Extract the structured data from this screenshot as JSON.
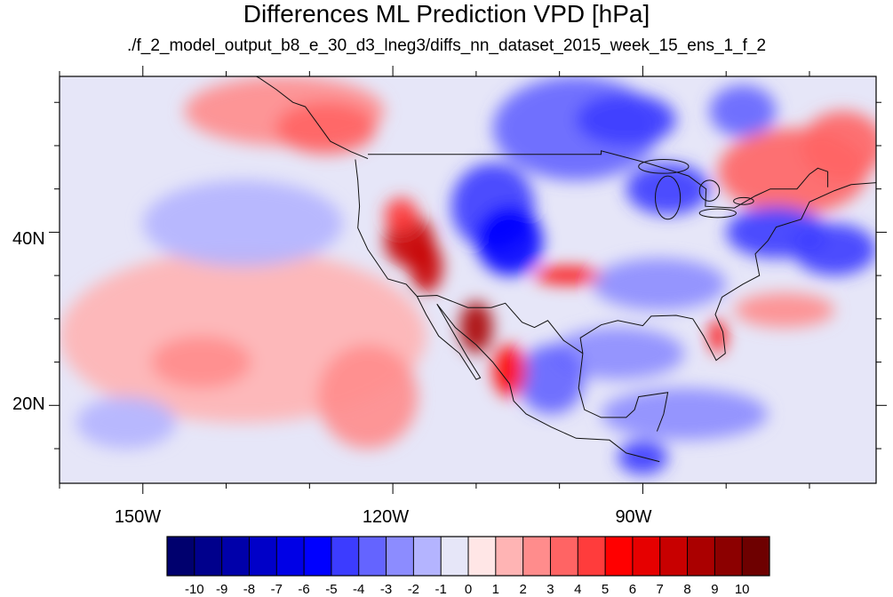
{
  "title": "Differences ML Prediction VPD [hPa]",
  "subtitle": "./f_2_model_output_b8_e_30_d3_lneg3/diffs_nn_dataset_2015_week_15_ens_1_f_2",
  "map": {
    "lon_range": [
      -160,
      -62
    ],
    "lat_range": [
      11,
      58
    ],
    "lat_labels": [
      {
        "lat": 40,
        "text": "40N"
      },
      {
        "lat": 20,
        "text": "20N"
      }
    ],
    "lon_labels": [
      {
        "lon": -150,
        "text": "150W"
      },
      {
        "lon": -120,
        "text": "120W"
      },
      {
        "lon": -90,
        "text": "90W"
      }
    ],
    "background_color": "#e6e6f8",
    "fields": [
      {
        "name": "northwest-pacific-positive",
        "value": 2,
        "lon": -133,
        "lat": 54,
        "rlon": 12,
        "rlat": 4
      },
      {
        "name": "alaska-coast-positive",
        "value": 3,
        "lon": -128,
        "lat": 52,
        "rlon": 6,
        "rlat": 3
      },
      {
        "name": "pacific-subtropical-positive",
        "value": 1,
        "lon": -138,
        "lat": 28,
        "rlon": 22,
        "rlat": 10
      },
      {
        "name": "pacific-west-positive",
        "value": 2,
        "lon": -143,
        "lat": 25,
        "rlon": 6,
        "rlat": 3
      },
      {
        "name": "mexico-pacific-positive",
        "value": 2,
        "lon": -123,
        "lat": 21,
        "rlon": 6,
        "rlat": 6
      },
      {
        "name": "pacific-midlat-negative",
        "value": -2,
        "lon": -138,
        "lat": 41,
        "rlon": 12,
        "rlat": 5
      },
      {
        "name": "pacific-low-negative",
        "value": -2,
        "lon": -152,
        "lat": 18,
        "rlon": 6,
        "rlat": 3
      },
      {
        "name": "central-canada-negative",
        "value": -4,
        "lon": -98,
        "lat": 52,
        "rlon": 10,
        "rlat": 6
      },
      {
        "name": "northern-canada-negative",
        "value": -5,
        "lon": -92,
        "lat": 53,
        "rlon": 6,
        "rlat": 3
      },
      {
        "name": "hudson-negative",
        "value": -4,
        "lon": -78,
        "lat": 54,
        "rlon": 4,
        "rlat": 3
      },
      {
        "name": "east-canada-positive",
        "value": 3,
        "lon": -72,
        "lat": 47,
        "rlon": 9,
        "rlat": 5
      },
      {
        "name": "labrador-positive",
        "value": 3,
        "lon": -66,
        "lat": 50,
        "rlon": 5,
        "rlat": 4
      },
      {
        "name": "rockies-negative",
        "value": -5,
        "lon": -108,
        "lat": 43,
        "rlon": 5,
        "rlat": 5
      },
      {
        "name": "colorado-negative",
        "value": -6,
        "lon": -106,
        "lat": 39,
        "rlon": 4,
        "rlat": 4
      },
      {
        "name": "great-lakes-negative",
        "value": -5,
        "lon": -87,
        "lat": 45,
        "rlon": 5,
        "rlat": 3
      },
      {
        "name": "new-england-negative",
        "value": -5,
        "lon": -74,
        "lat": 40,
        "rlon": 6,
        "rlat": 3
      },
      {
        "name": "atlantic-negative",
        "value": -5,
        "lon": -67,
        "lat": 38,
        "rlon": 5,
        "rlat": 3
      },
      {
        "name": "southeast-us-negative",
        "value": -3,
        "lon": -88,
        "lat": 34,
        "rlon": 8,
        "rlat": 3
      },
      {
        "name": "gulf-negative",
        "value": -3,
        "lon": -93,
        "lat": 26,
        "rlon": 8,
        "rlat": 3
      },
      {
        "name": "mexico-negative",
        "value": -4,
        "lon": -101,
        "lat": 23,
        "rlon": 4,
        "rlat": 4
      },
      {
        "name": "caribbean-negative",
        "value": -3,
        "lon": -85,
        "lat": 19,
        "rlon": 10,
        "rlat": 3
      },
      {
        "name": "central-america-negative",
        "value": -5,
        "lon": -90,
        "lat": 14,
        "rlon": 3,
        "rlat": 2
      },
      {
        "name": "great-basin-positive",
        "value": 7,
        "lon": -118,
        "lat": 39,
        "rlon": 3,
        "rlat": 3
      },
      {
        "name": "california-positive",
        "value": 7,
        "lon": -116,
        "lat": 36,
        "rlon": 2,
        "rlat": 3
      },
      {
        "name": "southern-plains-positive",
        "value": 5,
        "lon": -99,
        "lat": 35,
        "rlon": 4,
        "rlat": 1
      },
      {
        "name": "northern-california-positive",
        "value": 4,
        "lon": -119,
        "lat": 42,
        "rlon": 2,
        "rlat": 2
      },
      {
        "name": "baja-sonora-positive",
        "value": 8,
        "lon": -110,
        "lat": 29,
        "rlon": 2,
        "rlat": 3
      },
      {
        "name": "mexico-sierra-positive",
        "value": 5,
        "lon": -106,
        "lat": 24,
        "rlon": 2,
        "rlat": 3
      },
      {
        "name": "florida-positive",
        "value": 5,
        "lon": -81,
        "lat": 28,
        "rlon": 1,
        "rlat": 2
      },
      {
        "name": "atlantic-subtropical-positive",
        "value": 2,
        "lon": -73,
        "lat": 31,
        "rlon": 6,
        "rlat": 2
      }
    ],
    "coastline_color": "#111111"
  },
  "colorbar": {
    "colors": [
      "#00006e",
      "#00008c",
      "#0000aa",
      "#0000c8",
      "#0000e6",
      "#0000ff",
      "#3c3cff",
      "#6464ff",
      "#8c8cff",
      "#b4b4ff",
      "#e6e6f8",
      "#ffe6e6",
      "#ffb4b4",
      "#ff8c8c",
      "#ff6464",
      "#ff3c3c",
      "#ff0000",
      "#e60000",
      "#c80000",
      "#aa0000",
      "#8c0000",
      "#6e0000"
    ],
    "labels": [
      "-10",
      "-9",
      "-8",
      "-7",
      "-6",
      "-5",
      "-4",
      "-3",
      "-2",
      "-1",
      "0",
      "1",
      "2",
      "3",
      "4",
      "5",
      "6",
      "7",
      "8",
      "9",
      "10"
    ]
  }
}
